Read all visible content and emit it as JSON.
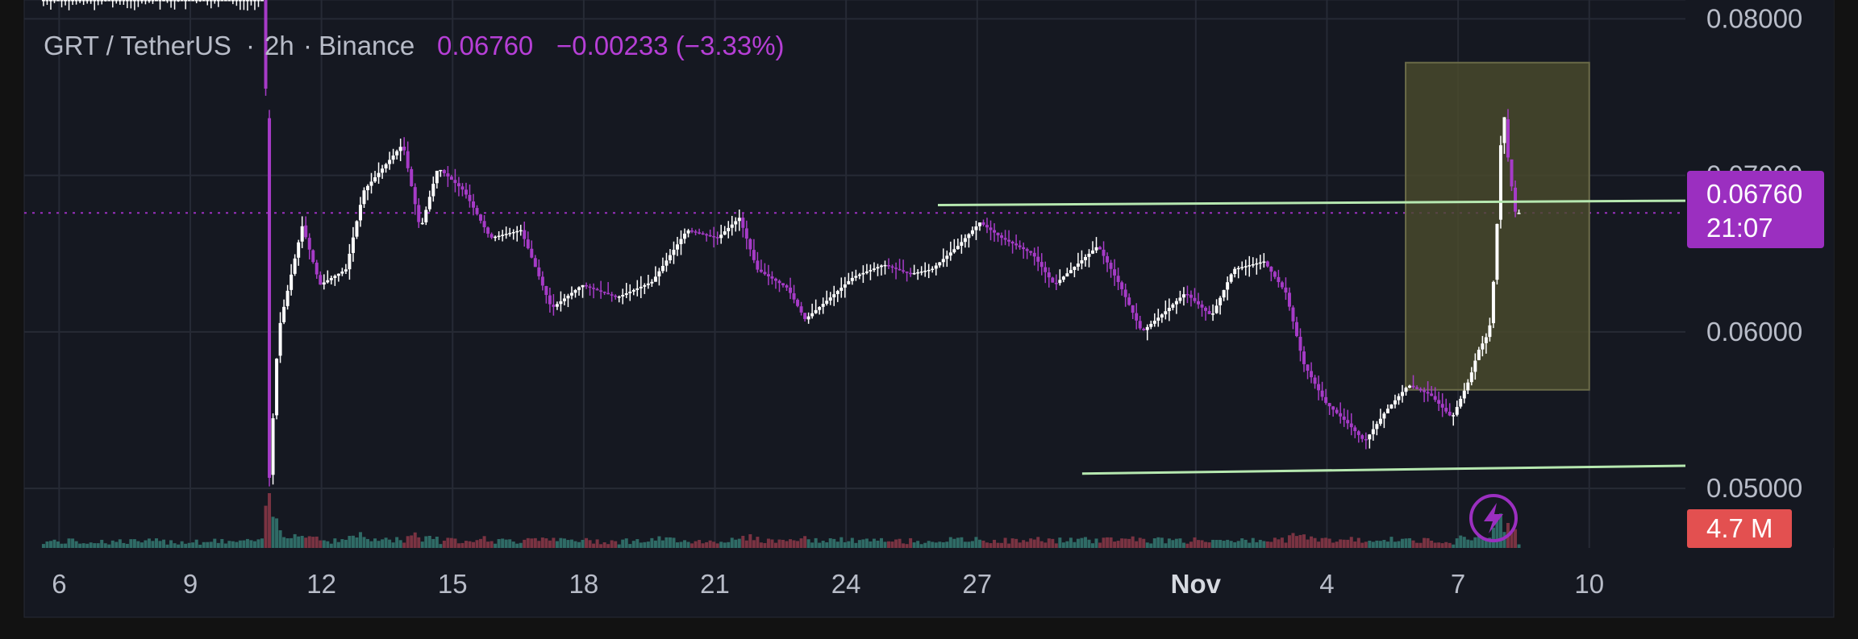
{
  "header": {
    "symbol": "GRT / TetherUS",
    "interval": "2h",
    "exchange": "Binance",
    "price": "0.06760",
    "change": "−0.00233 (−3.33%)"
  },
  "price_label": {
    "price": "0.06760",
    "countdown": "21:07"
  },
  "volume_label": "4.7 M",
  "colors": {
    "background": "#121212",
    "pane": "#151821",
    "grid": "#262a35",
    "up": "#ffffff",
    "down": "#a63bc7",
    "accent": "#9b2fc0",
    "trendline": "#b6e8b0",
    "box_fill": "#4a4a2c",
    "volume_badge": "#e35050",
    "text": "#b8bcc8"
  },
  "icons": {
    "snapshot": "lightning-icon"
  },
  "chart_data": {
    "type": "candlestick",
    "title": "GRT / TetherUS · 2h · Binance",
    "x_axis": {
      "ticks": [
        "6",
        "9",
        "12",
        "15",
        "18",
        "21",
        "24",
        "27",
        "Nov",
        "4",
        "7",
        "10"
      ],
      "tick_days": [
        6,
        9,
        12,
        15,
        18,
        21,
        24,
        27,
        32,
        35,
        38,
        41
      ],
      "bold": [
        "Nov"
      ],
      "range_days": [
        5.2,
        43.2
      ]
    },
    "y_axis": {
      "ticks": [
        "0.08000",
        "0.07000",
        "0.06000",
        "0.05000"
      ],
      "tick_values": [
        0.08,
        0.07,
        0.06,
        0.05
      ],
      "range": [
        0.0462,
        0.0812
      ]
    },
    "grid": true,
    "last_price": 0.0676,
    "trendlines": [
      {
        "from": [
          26.1,
          0.0681
        ],
        "to": [
          43.2,
          0.06838
        ]
      },
      {
        "from": [
          29.4,
          0.05095
        ],
        "to": [
          43.2,
          0.05145
        ]
      }
    ],
    "rectangle": {
      "x": [
        36.8,
        41.0
      ],
      "y": [
        0.0563,
        0.0772
      ]
    },
    "path_points": [
      [
        5.6,
        0.0812
      ],
      [
        9.3,
        0.0812
      ],
      [
        10.5,
        0.0812
      ],
      [
        10.75,
        0.0812
      ],
      [
        10.82,
        0.0495
      ],
      [
        11.05,
        0.06
      ],
      [
        11.6,
        0.0668
      ],
      [
        12.0,
        0.063
      ],
      [
        12.6,
        0.064
      ],
      [
        13.0,
        0.069
      ],
      [
        13.9,
        0.072
      ],
      [
        14.3,
        0.0665
      ],
      [
        14.7,
        0.0705
      ],
      [
        15.3,
        0.069
      ],
      [
        15.9,
        0.066
      ],
      [
        16.6,
        0.0665
      ],
      [
        17.3,
        0.0615
      ],
      [
        18.0,
        0.063
      ],
      [
        18.8,
        0.0622
      ],
      [
        19.6,
        0.0632
      ],
      [
        20.4,
        0.0665
      ],
      [
        21.1,
        0.066
      ],
      [
        21.6,
        0.0673
      ],
      [
        22.0,
        0.064
      ],
      [
        22.7,
        0.0628
      ],
      [
        23.1,
        0.0608
      ],
      [
        23.6,
        0.062
      ],
      [
        24.2,
        0.0635
      ],
      [
        24.9,
        0.0643
      ],
      [
        25.5,
        0.0637
      ],
      [
        26.0,
        0.064
      ],
      [
        26.6,
        0.0655
      ],
      [
        27.1,
        0.067
      ],
      [
        27.6,
        0.066
      ],
      [
        28.3,
        0.065
      ],
      [
        28.8,
        0.063
      ],
      [
        29.4,
        0.0645
      ],
      [
        29.8,
        0.0655
      ],
      [
        30.3,
        0.063
      ],
      [
        30.8,
        0.06
      ],
      [
        31.3,
        0.0612
      ],
      [
        31.8,
        0.0625
      ],
      [
        32.4,
        0.061
      ],
      [
        32.9,
        0.064
      ],
      [
        33.6,
        0.0645
      ],
      [
        34.1,
        0.0625
      ],
      [
        34.5,
        0.058
      ],
      [
        35.0,
        0.0555
      ],
      [
        35.5,
        0.0542
      ],
      [
        35.9,
        0.053
      ],
      [
        36.4,
        0.055
      ],
      [
        36.9,
        0.0566
      ],
      [
        37.4,
        0.056
      ],
      [
        37.9,
        0.0545
      ],
      [
        38.3,
        0.057
      ],
      [
        38.5,
        0.0588
      ],
      [
        38.75,
        0.06
      ],
      [
        38.9,
        0.065
      ],
      [
        39.0,
        0.0715
      ],
      [
        39.08,
        0.0742
      ],
      [
        39.2,
        0.0705
      ],
      [
        39.35,
        0.0676
      ]
    ]
  }
}
